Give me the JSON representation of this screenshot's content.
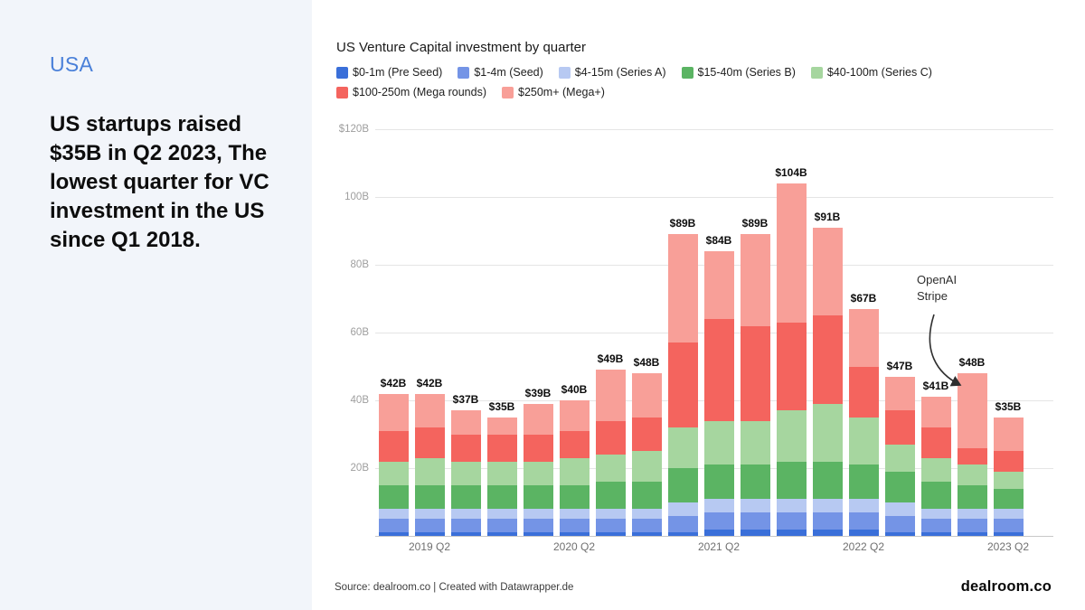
{
  "sidebar": {
    "kicker": "USA",
    "headline": "US startups raised $35B in Q2 2023, The lowest quarter for VC investment in the US since Q1 2018."
  },
  "footer": {
    "source": "Source: dealroom.co | Created with Datawrapper.de",
    "brand": "dealroom.co"
  },
  "chart_data": {
    "type": "bar",
    "stacked": true,
    "title": "US Venture Capital investment by quarter",
    "grid": true,
    "legend_position": "top",
    "categories": [
      "2019 Q1",
      "2019 Q2",
      "2019 Q3",
      "2019 Q4",
      "2020 Q1",
      "2020 Q2",
      "2020 Q3",
      "2020 Q4",
      "2021 Q1",
      "2021 Q2",
      "2021 Q3",
      "2021 Q4",
      "2022 Q1",
      "2022 Q2",
      "2022 Q3",
      "2022 Q4",
      "2023 Q1",
      "2023 Q2"
    ],
    "totals": [
      42,
      42,
      37,
      35,
      39,
      40,
      49,
      48,
      89,
      84,
      89,
      104,
      91,
      67,
      47,
      41,
      48,
      35
    ],
    "total_labels": [
      "$42B",
      "$42B",
      "$37B",
      "$35B",
      "$39B",
      "$40B",
      "$49B",
      "$48B",
      "$89B",
      "$84B",
      "$89B",
      "$104B",
      "$91B",
      "$67B",
      "$47B",
      "$41B",
      "$48B",
      "$35B"
    ],
    "series": [
      {
        "name": "$0-1m (Pre Seed)",
        "color": "#3a6fd9",
        "values": [
          1,
          1,
          1,
          1,
          1,
          1,
          1,
          1,
          1,
          2,
          2,
          2,
          2,
          2,
          1,
          1,
          1,
          1
        ]
      },
      {
        "name": "$1-4m (Seed)",
        "color": "#7494e6",
        "values": [
          4,
          4,
          4,
          4,
          4,
          4,
          4,
          4,
          5,
          5,
          5,
          5,
          5,
          5,
          5,
          4,
          4,
          4
        ]
      },
      {
        "name": "$4-15m (Series A)",
        "color": "#b7c9f2",
        "values": [
          3,
          3,
          3,
          3,
          3,
          3,
          3,
          3,
          4,
          4,
          4,
          4,
          4,
          4,
          4,
          3,
          3,
          3
        ]
      },
      {
        "name": "$15-40m (Series B)",
        "color": "#5bb463",
        "values": [
          7,
          7,
          7,
          7,
          7,
          7,
          8,
          8,
          10,
          10,
          10,
          11,
          11,
          10,
          9,
          8,
          7,
          6
        ]
      },
      {
        "name": "$40-100m (Series C)",
        "color": "#a6d69f",
        "values": [
          7,
          8,
          7,
          7,
          7,
          8,
          8,
          9,
          12,
          13,
          13,
          15,
          17,
          14,
          8,
          7,
          6,
          5
        ]
      },
      {
        "name": "$100-250m (Mega rounds)",
        "color": "#f4645e",
        "values": [
          9,
          9,
          8,
          8,
          8,
          8,
          10,
          10,
          25,
          30,
          28,
          26,
          26,
          15,
          10,
          9,
          5,
          6
        ]
      },
      {
        "name": "$250m+ (Mega+)",
        "color": "#f89f98",
        "values": [
          11,
          10,
          7,
          5,
          9,
          9,
          15,
          13,
          32,
          20,
          27,
          41,
          26,
          17,
          10,
          9,
          22,
          10
        ]
      }
    ],
    "y_axis": {
      "max": 120,
      "ticks": [
        {
          "value": 120,
          "label": "$120B"
        },
        {
          "value": 100,
          "label": "100B"
        },
        {
          "value": 80,
          "label": "80B"
        },
        {
          "value": 60,
          "label": "60B"
        },
        {
          "value": 40,
          "label": "40B"
        },
        {
          "value": 20,
          "label": "20B"
        }
      ]
    },
    "x_ticks": [
      {
        "index": 1,
        "label": "2019 Q2"
      },
      {
        "index": 5,
        "label": "2020 Q2"
      },
      {
        "index": 9,
        "label": "2021 Q2"
      },
      {
        "index": 13,
        "label": "2022 Q2"
      },
      {
        "index": 17,
        "label": "2023 Q2"
      }
    ],
    "annotation": {
      "lines": [
        "OpenAI",
        "Stripe"
      ],
      "target": "2023 Q1"
    }
  }
}
